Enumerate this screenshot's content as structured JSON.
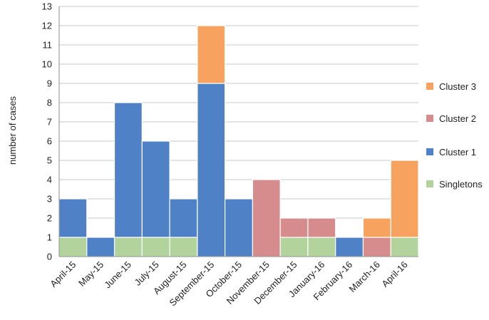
{
  "chart_data": {
    "type": "bar",
    "stacked": true,
    "ylabel": "number of cases",
    "xlabel": "",
    "ylim": [
      0,
      13
    ],
    "yticks": [
      0,
      1,
      2,
      3,
      4,
      5,
      6,
      7,
      8,
      9,
      10,
      11,
      12,
      13
    ],
    "grid": "horizontal",
    "legend_position": "right",
    "categories": [
      "April-15",
      "May-15",
      "June-15",
      "July-15",
      "August-15",
      "September-15",
      "October-15",
      "November-15",
      "December-15",
      "January-16",
      "February-16",
      "March-16",
      "April-16"
    ],
    "series": [
      {
        "name": "Singletons",
        "color": "#b3d39d",
        "values": [
          1,
          0,
          1,
          1,
          1,
          0,
          0,
          0,
          1,
          1,
          0,
          0,
          1
        ]
      },
      {
        "name": "Cluster 1",
        "color": "#4f81c7",
        "values": [
          2,
          1,
          7,
          5,
          2,
          9,
          3,
          0,
          0,
          0,
          1,
          0,
          0
        ]
      },
      {
        "name": "Cluster 2",
        "color": "#d68b8c",
        "values": [
          0,
          0,
          0,
          0,
          0,
          0,
          0,
          4,
          1,
          1,
          0,
          1,
          0
        ]
      },
      {
        "name": "Cluster 3",
        "color": "#f7a25e",
        "values": [
          0,
          0,
          0,
          0,
          0,
          3,
          0,
          0,
          0,
          0,
          0,
          1,
          4
        ]
      }
    ],
    "legend_order": [
      "Cluster 3",
      "Cluster 2",
      "Cluster 1",
      "Singletons"
    ]
  }
}
